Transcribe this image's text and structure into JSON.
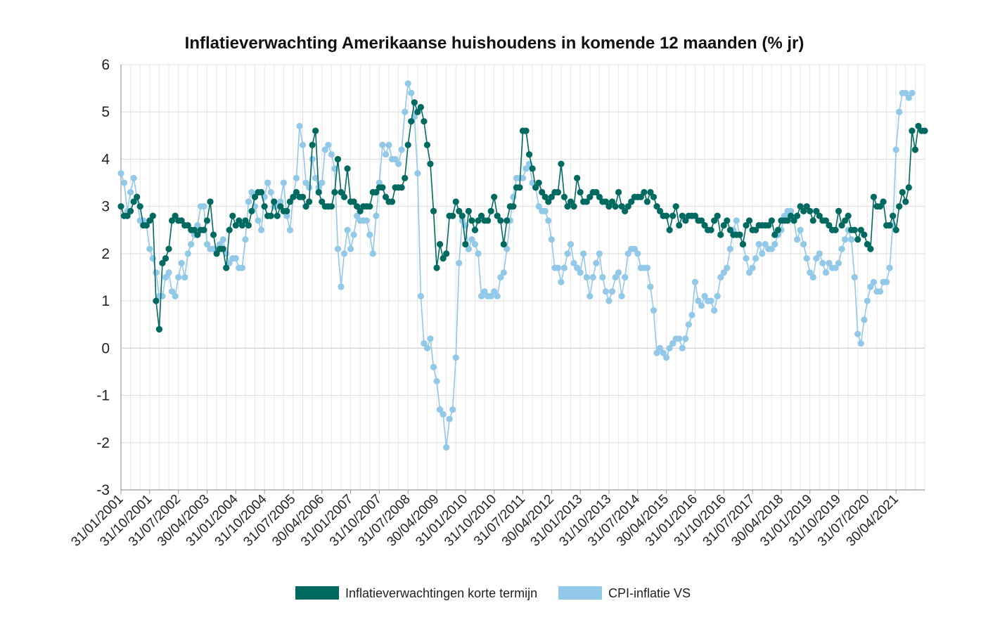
{
  "chart_data": {
    "type": "line",
    "title": "Inflatieverwachting Amerikaanse huishoudens in komende 12 maanden (% jr)",
    "xlabel": "",
    "ylabel": "",
    "ylim": [
      -3,
      6
    ],
    "yticks": [
      "6",
      "5",
      "4",
      "3",
      "2",
      "1",
      "0",
      "-1",
      "-2",
      "-3"
    ],
    "x_start": "2001-01",
    "x_end": "2021-08",
    "x_tick_labels": [
      "31/01/2001",
      "31/10/2001",
      "31/07/2002",
      "30/04/2003",
      "31/01/2004",
      "31/10/2004",
      "31/07/2005",
      "30/04/2006",
      "31/01/2007",
      "31/10/2007",
      "31/07/2008",
      "30/04/2009",
      "31/01/2010",
      "31/10/2010",
      "31/07/2011",
      "30/04/2012",
      "31/01/2013",
      "31/10/2013",
      "31/07/2014",
      "30/04/2015",
      "31/01/2016",
      "31/10/2016",
      "31/07/2017",
      "30/04/2018",
      "31/01/2019",
      "31/10/2019",
      "31/07/2020",
      "30/04/2021"
    ],
    "grid": true,
    "legend_position": "bottom-center",
    "series": [
      {
        "name": "Inflatieverwachtingen korte termijn",
        "color": "#006a60",
        "values": [
          3.0,
          2.8,
          2.8,
          2.9,
          3.1,
          3.2,
          3.0,
          2.6,
          2.6,
          2.7,
          2.8,
          1.0,
          0.4,
          1.8,
          1.9,
          2.1,
          2.7,
          2.8,
          2.7,
          2.7,
          2.6,
          2.6,
          2.5,
          2.5,
          2.4,
          2.5,
          2.5,
          2.7,
          3.1,
          2.4,
          2.0,
          2.1,
          2.1,
          1.7,
          2.5,
          2.8,
          2.6,
          2.7,
          2.6,
          2.7,
          2.6,
          2.9,
          3.2,
          3.3,
          3.3,
          3.0,
          2.8,
          2.8,
          3.1,
          2.8,
          3.0,
          2.9,
          2.9,
          3.1,
          3.2,
          3.3,
          3.2,
          3.2,
          3.0,
          3.1,
          4.3,
          4.6,
          3.3,
          3.1,
          3.0,
          3.0,
          3.0,
          3.3,
          4.0,
          3.3,
          3.2,
          3.8,
          3.1,
          3.1,
          3.0,
          2.9,
          3.0,
          3.0,
          3.0,
          3.3,
          3.3,
          3.4,
          3.4,
          3.2,
          3.1,
          3.1,
          3.4,
          3.4,
          3.4,
          3.6,
          4.3,
          4.8,
          5.2,
          5.0,
          5.1,
          4.8,
          4.3,
          3.9,
          2.9,
          1.7,
          2.2,
          1.9,
          2.0,
          2.8,
          2.8,
          3.1,
          2.9,
          2.8,
          2.2,
          2.9,
          2.7,
          2.5,
          2.7,
          2.8,
          2.7,
          2.7,
          2.9,
          3.2,
          2.8,
          2.7,
          2.2,
          2.7,
          3.0,
          3.0,
          3.4,
          3.4,
          4.6,
          4.6,
          4.1,
          3.8,
          3.4,
          3.5,
          3.3,
          3.2,
          3.1,
          3.2,
          3.3,
          3.3,
          3.9,
          3.2,
          3.0,
          3.1,
          3.0,
          3.6,
          3.3,
          3.1,
          3.1,
          3.2,
          3.3,
          3.3,
          3.2,
          3.1,
          3.1,
          3.0,
          3.1,
          3.0,
          3.3,
          3.0,
          2.9,
          3.0,
          3.1,
          3.2,
          3.2,
          3.2,
          3.3,
          3.1,
          3.3,
          3.2,
          3.0,
          2.9,
          2.8,
          2.8,
          2.5,
          2.8,
          3.0,
          2.6,
          2.8,
          2.7,
          2.8,
          2.8,
          2.8,
          2.7,
          2.7,
          2.6,
          2.5,
          2.5,
          2.7,
          2.8,
          2.4,
          2.6,
          2.7,
          2.5,
          2.4,
          2.4,
          2.4,
          2.2,
          2.6,
          2.7,
          2.5,
          2.5,
          2.6,
          2.6,
          2.6,
          2.6,
          2.7,
          2.4,
          2.5,
          2.7,
          2.7,
          2.7,
          2.8,
          2.7,
          2.8,
          3.0,
          2.9,
          3.0,
          2.9,
          2.7,
          2.9,
          2.8,
          2.7,
          2.7,
          2.6,
          2.5,
          2.5,
          2.9,
          2.6,
          2.7,
          2.8,
          2.5,
          2.5,
          2.3,
          2.5,
          2.4,
          2.2,
          2.1,
          3.2,
          3.0,
          3.0,
          3.1,
          2.6,
          2.6,
          2.8,
          2.5,
          3.0,
          3.3,
          3.1,
          3.4,
          4.6,
          4.2,
          4.7,
          4.6,
          4.6
        ]
      },
      {
        "name": "CPI-inflatie VS",
        "color": "#92c9e8",
        "values": [
          3.7,
          3.5,
          2.9,
          3.3,
          3.6,
          3.2,
          2.7,
          2.7,
          2.6,
          2.1,
          1.9,
          1.6,
          1.1,
          1.1,
          1.5,
          1.6,
          1.2,
          1.1,
          1.5,
          1.8,
          1.5,
          2.0,
          2.2,
          2.4,
          2.6,
          3.0,
          3.0,
          2.2,
          2.1,
          2.1,
          2.1,
          2.2,
          2.3,
          2.0,
          1.8,
          1.9,
          1.9,
          1.7,
          1.7,
          2.3,
          3.1,
          3.3,
          3.0,
          2.7,
          2.5,
          3.2,
          3.5,
          3.3,
          3.0,
          3.0,
          3.1,
          3.5,
          2.8,
          2.5,
          3.2,
          3.6,
          4.7,
          4.3,
          3.5,
          3.4,
          4.0,
          3.6,
          3.4,
          3.5,
          4.2,
          4.3,
          4.1,
          3.8,
          2.1,
          1.3,
          2.0,
          2.5,
          2.1,
          2.4,
          2.8,
          2.7,
          2.7,
          2.7,
          2.4,
          2.0,
          2.8,
          3.5,
          4.3,
          4.1,
          4.3,
          4.0,
          4.0,
          3.9,
          4.2,
          5.0,
          5.6,
          5.4,
          4.9,
          3.7,
          1.1,
          0.1,
          0.0,
          0.2,
          -0.4,
          -0.7,
          -1.3,
          -1.4,
          -2.1,
          -1.5,
          -1.3,
          -0.2,
          1.8,
          2.7,
          2.6,
          2.1,
          2.3,
          2.2,
          2.0,
          1.1,
          1.2,
          1.1,
          1.1,
          1.2,
          1.1,
          1.5,
          1.6,
          2.1,
          2.7,
          3.2,
          3.6,
          3.6,
          3.6,
          3.8,
          3.9,
          3.5,
          3.4,
          3.0,
          2.9,
          2.9,
          2.7,
          2.3,
          1.7,
          1.7,
          1.4,
          1.7,
          2.0,
          2.2,
          1.8,
          1.7,
          1.6,
          2.0,
          1.5,
          1.1,
          1.5,
          1.8,
          2.0,
          1.5,
          1.2,
          1.0,
          1.2,
          1.5,
          1.6,
          1.1,
          1.5,
          2.0,
          2.1,
          2.1,
          2.0,
          1.7,
          1.7,
          1.7,
          1.3,
          0.8,
          -0.1,
          0.0,
          -0.1,
          -0.2,
          0.0,
          0.1,
          0.2,
          0.2,
          0.0,
          0.2,
          0.5,
          0.7,
          1.4,
          1.0,
          0.9,
          1.1,
          1.0,
          1.0,
          0.8,
          1.1,
          1.5,
          1.6,
          1.7,
          2.1,
          2.5,
          2.7,
          2.4,
          2.2,
          1.9,
          1.6,
          1.7,
          1.9,
          2.2,
          2.0,
          2.2,
          2.1,
          2.1,
          2.2,
          2.4,
          2.5,
          2.8,
          2.9,
          2.9,
          2.7,
          2.3,
          2.5,
          2.2,
          1.9,
          1.6,
          1.5,
          1.9,
          2.0,
          1.8,
          1.6,
          1.8,
          1.7,
          1.7,
          1.8,
          2.1,
          2.3,
          2.5,
          2.3,
          1.5,
          0.3,
          0.1,
          0.6,
          1.0,
          1.3,
          1.4,
          1.2,
          1.2,
          1.4,
          1.4,
          1.7,
          2.6,
          4.2,
          5.0,
          5.4,
          5.4,
          5.3,
          5.4
        ]
      }
    ]
  }
}
